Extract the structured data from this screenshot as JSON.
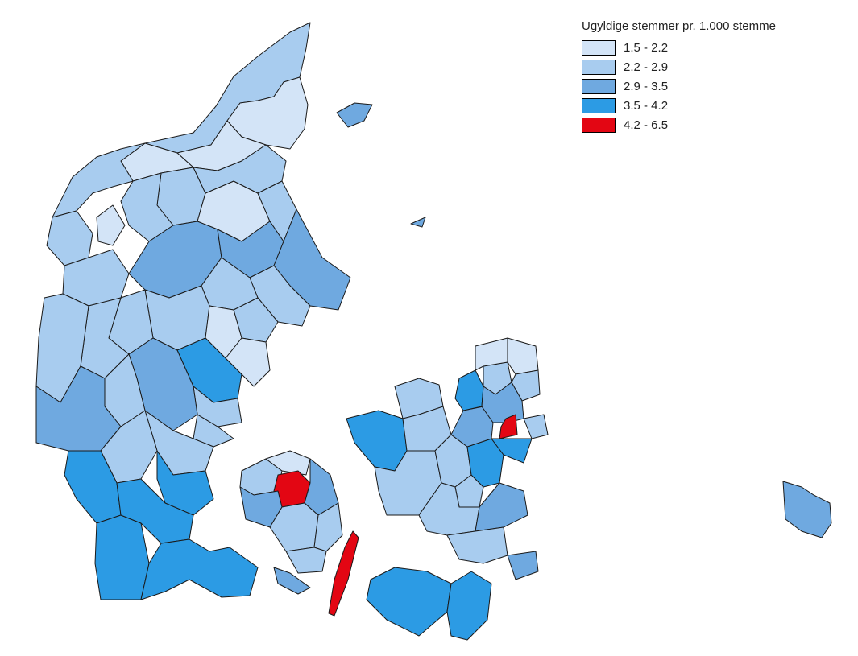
{
  "legend": {
    "title": "Ugyldige stemmer pr. 1.000 stemme",
    "classes": [
      {
        "label": "1.5 - 2.2",
        "color": "#d3e4f7"
      },
      {
        "label": "2.2 - 2.9",
        "color": "#a8ccef"
      },
      {
        "label": "2.9 - 3.5",
        "color": "#6fa9e0"
      },
      {
        "label": "3.5 - 4.2",
        "color": "#2c9be4"
      },
      {
        "label": "4.2 - 6.5",
        "color": "#e30613"
      }
    ]
  },
  "colors": {
    "background": "#ffffff",
    "border": "#1a1a1a"
  }
}
